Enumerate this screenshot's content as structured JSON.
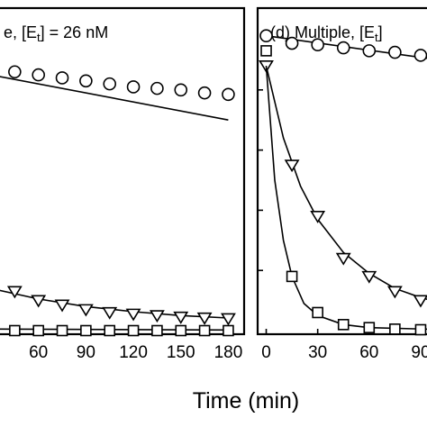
{
  "figure": {
    "xlabel": "Time (min)"
  },
  "chart_data": [
    {
      "type": "scatter",
      "panel": "left",
      "title": "e, [E",
      "title_sub": "t",
      "title_rest": "] = 26 nM",
      "xlim": [
        30,
        190
      ],
      "ylim": [
        0,
        1
      ],
      "xticks": [
        60,
        90,
        120,
        150,
        180
      ],
      "yticks": [],
      "series": [
        {
          "marker": "circle",
          "x": [
            30,
            45,
            60,
            75,
            90,
            105,
            120,
            135,
            150,
            165,
            180
          ],
          "y": [
            0.88,
            0.86,
            0.85,
            0.84,
            0.83,
            0.82,
            0.81,
            0.805,
            0.8,
            0.79,
            0.785
          ],
          "fit": [
            [
              30,
              0.85
            ],
            [
              180,
              0.7
            ]
          ]
        },
        {
          "marker": "triangle-down",
          "x": [
            30,
            45,
            60,
            75,
            90,
            105,
            120,
            135,
            150,
            165,
            180
          ],
          "y": [
            0.16,
            0.13,
            0.1,
            0.085,
            0.07,
            0.06,
            0.055,
            0.05,
            0.045,
            0.042,
            0.04
          ],
          "fit": [
            [
              30,
              0.14
            ],
            [
              60,
              0.105
            ],
            [
              90,
              0.08
            ],
            [
              120,
              0.063
            ],
            [
              150,
              0.05
            ],
            [
              180,
              0.042
            ]
          ]
        },
        {
          "marker": "square",
          "x": [
            30,
            45,
            60,
            75,
            90,
            105,
            120,
            135,
            150,
            165,
            180
          ],
          "y": [
            0.0,
            0.0,
            0.0,
            0.0,
            0.0,
            0.0,
            0.0,
            0.0,
            0.0,
            0.0,
            0.0
          ],
          "fit": [
            [
              30,
              0.005
            ],
            [
              180,
              0.002
            ]
          ]
        }
      ]
    },
    {
      "type": "scatter",
      "panel": "right",
      "title": "(d) Multiple, [E",
      "title_sub": "t",
      "title_rest": "]",
      "xlim": [
        -5,
        100
      ],
      "ylim": [
        0,
        1
      ],
      "xticks": [
        0,
        30,
        60,
        90
      ],
      "yticks": [
        0.2,
        0.4,
        0.6,
        0.8
      ],
      "series": [
        {
          "marker": "circle",
          "x": [
            0,
            15,
            30,
            45,
            60,
            75,
            90
          ],
          "y": [
            0.98,
            0.955,
            0.95,
            0.94,
            0.93,
            0.925,
            0.915
          ],
          "fit": [
            [
              0,
              0.98
            ],
            [
              100,
              0.9
            ]
          ]
        },
        {
          "marker": "triangle-down",
          "x": [
            0,
            15,
            30,
            45,
            60,
            75,
            90
          ],
          "y": [
            0.88,
            0.55,
            0.38,
            0.24,
            0.18,
            0.13,
            0.1
          ],
          "fit": [
            [
              0,
              0.88
            ],
            [
              10,
              0.64
            ],
            [
              20,
              0.48
            ],
            [
              30,
              0.37
            ],
            [
              45,
              0.26
            ],
            [
              60,
              0.19
            ],
            [
              75,
              0.14
            ],
            [
              90,
              0.11
            ],
            [
              100,
              0.095
            ]
          ]
        },
        {
          "marker": "square",
          "x": [
            0,
            15,
            30,
            45,
            60,
            75,
            90
          ],
          "y": [
            0.93,
            0.18,
            0.06,
            0.02,
            0.01,
            0.005,
            0.003
          ],
          "fit": [
            [
              0,
              0.88
            ],
            [
              5,
              0.5
            ],
            [
              10,
              0.3
            ],
            [
              15,
              0.18
            ],
            [
              22,
              0.09
            ],
            [
              30,
              0.05
            ],
            [
              45,
              0.02
            ],
            [
              60,
              0.01
            ],
            [
              100,
              0.004
            ]
          ]
        }
      ]
    }
  ]
}
